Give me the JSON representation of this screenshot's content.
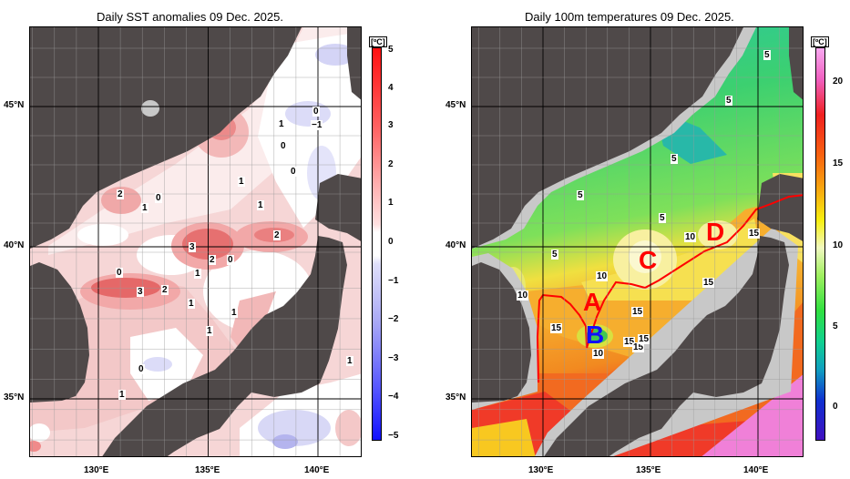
{
  "left_map": {
    "title": "Daily SST anomalies 09 Dec. 2025.",
    "lat_labels": [
      "45°N",
      "40°N",
      "35°N"
    ],
    "lon_labels": [
      "130°E",
      "135°E",
      "140°E"
    ],
    "colorbar": {
      "unit": "[ºC]",
      "ticks": [
        "5",
        "4",
        "3",
        "2",
        "1",
        "0",
        "−1",
        "−2",
        "−3",
        "−4",
        "−5"
      ],
      "min": -5,
      "max": 5,
      "colors": {
        "positive": "#ff1010",
        "zero": "#ffffff",
        "negative": "#1010ff"
      }
    },
    "contour_labels": [
      "1",
      "0",
      "−1",
      "0",
      "0",
      "1",
      "2",
      "1",
      "0",
      "1",
      "2",
      "3",
      "2",
      "0",
      "1",
      "0",
      "3",
      "2",
      "1",
      "1",
      "1",
      "0",
      "1",
      "1"
    ]
  },
  "right_map": {
    "title": "Daily 100m temperatures 09 Dec. 2025.",
    "lat_labels": [
      "45°N",
      "40°N",
      "35°N"
    ],
    "lon_labels": [
      "130°E",
      "135°E",
      "140°E"
    ],
    "colorbar": {
      "unit": "[ºC]",
      "ticks": [
        "20",
        "15",
        "10",
        "5",
        "0"
      ],
      "min": -2,
      "max": 22
    },
    "contour_labels": [
      "5",
      "5",
      "5",
      "5",
      "5",
      "5",
      "10",
      "10",
      "10",
      "15",
      "15",
      "15",
      "15",
      "15",
      "15",
      "15",
      "10"
    ],
    "markers": [
      "A",
      "B",
      "C",
      "D"
    ],
    "marker_colors": {
      "A": "#ff0000",
      "B": "#1010ff",
      "C": "#ff0000",
      "D": "#ff0000"
    },
    "line_color": "#ff0000"
  },
  "land_color": "#4f4949",
  "shelf_color": "#c8c8c8"
}
